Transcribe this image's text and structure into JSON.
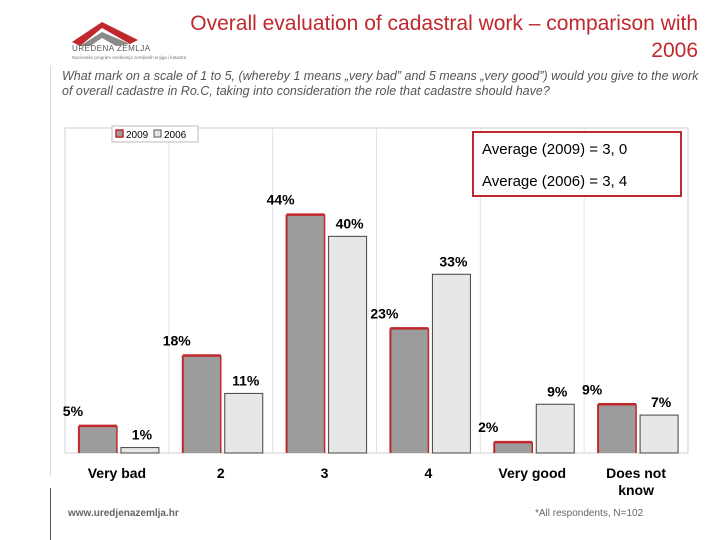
{
  "header": {
    "title": "Overall evaluation of cadastral work – comparison with 2006",
    "subtitle": "What mark on a scale of 1 to 5, (whereby 1 means „very bad” and 5 means „very good”) would you give to the work of overall cadastre in Ro.C, taking into consideration the role that cadastre should have?"
  },
  "logo": {
    "name": "UREDENA ZEMLJA",
    "tagline": "Nacionalni program sredivanja zemljisnih knjiga i katastra"
  },
  "colors": {
    "accent": "#c0282d",
    "series_2009": "#9c9c9c",
    "series_2006": "#e7e7e7",
    "text": "#000000"
  },
  "averages": {
    "avg_2009": "Average (2009) = 3, 0",
    "avg_2006": "Average (2006) = 3, 4"
  },
  "footer": {
    "website": "www.uredjenazemlja.hr",
    "note": "*All respondents, N=102"
  },
  "chart_data": {
    "type": "bar",
    "title": "",
    "xlabel": "",
    "ylabel": "",
    "ylim": [
      0,
      60
    ],
    "grid": true,
    "legend_position": "top-left",
    "categories": [
      "Very bad",
      "2",
      "3",
      "4",
      "Very good",
      "Does not know"
    ],
    "series": [
      {
        "name": "2009",
        "values": [
          5,
          18,
          44,
          23,
          2,
          9
        ],
        "labels": [
          "5%",
          "18%",
          "44%",
          "23%",
          "2%",
          "9%"
        ]
      },
      {
        "name": "2006",
        "values": [
          1,
          11,
          40,
          33,
          9,
          7
        ],
        "labels": [
          "1%",
          "11%",
          "40%",
          "33%",
          "9%",
          "7%"
        ]
      }
    ]
  }
}
